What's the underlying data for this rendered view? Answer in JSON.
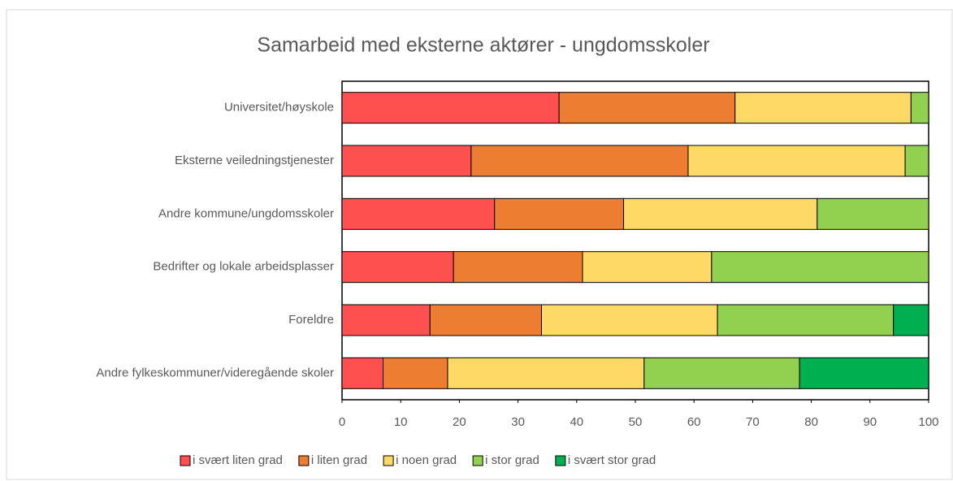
{
  "chart_data": {
    "type": "stacked_bar_horizontal",
    "title": "Samarbeid med eksterne aktører - ungdomsskoler",
    "categories": [
      "Universitet/høyskole",
      "Eksterne veiledningstjenester",
      "Andre kommune/ungdomsskoler",
      "Bedrifter og lokale arbeidsplasser",
      "Foreldre",
      "Andre fylkeskommuner/videregående skoler"
    ],
    "series": [
      {
        "name": "i svært liten grad",
        "color": "#ff5050",
        "values": [
          37,
          22,
          26,
          19,
          15,
          7
        ]
      },
      {
        "name": "i liten grad",
        "color": "#ed7d31",
        "values": [
          30,
          37,
          22,
          22,
          19,
          11
        ]
      },
      {
        "name": "i noen grad",
        "color": "#ffd966",
        "values": [
          30,
          37,
          33,
          22,
          30,
          33.5
        ]
      },
      {
        "name": "i stor grad",
        "color": "#92d050",
        "values": [
          3,
          4,
          19,
          37,
          30,
          26.5
        ]
      },
      {
        "name": "i svært stor grad",
        "color": "#00b050",
        "values": [
          0,
          0,
          0,
          0,
          6,
          22
        ]
      }
    ],
    "xlim": [
      0,
      100
    ],
    "xticks": [
      0,
      10,
      20,
      30,
      40,
      50,
      60,
      70,
      80,
      90,
      100
    ],
    "legend": "bottom"
  }
}
